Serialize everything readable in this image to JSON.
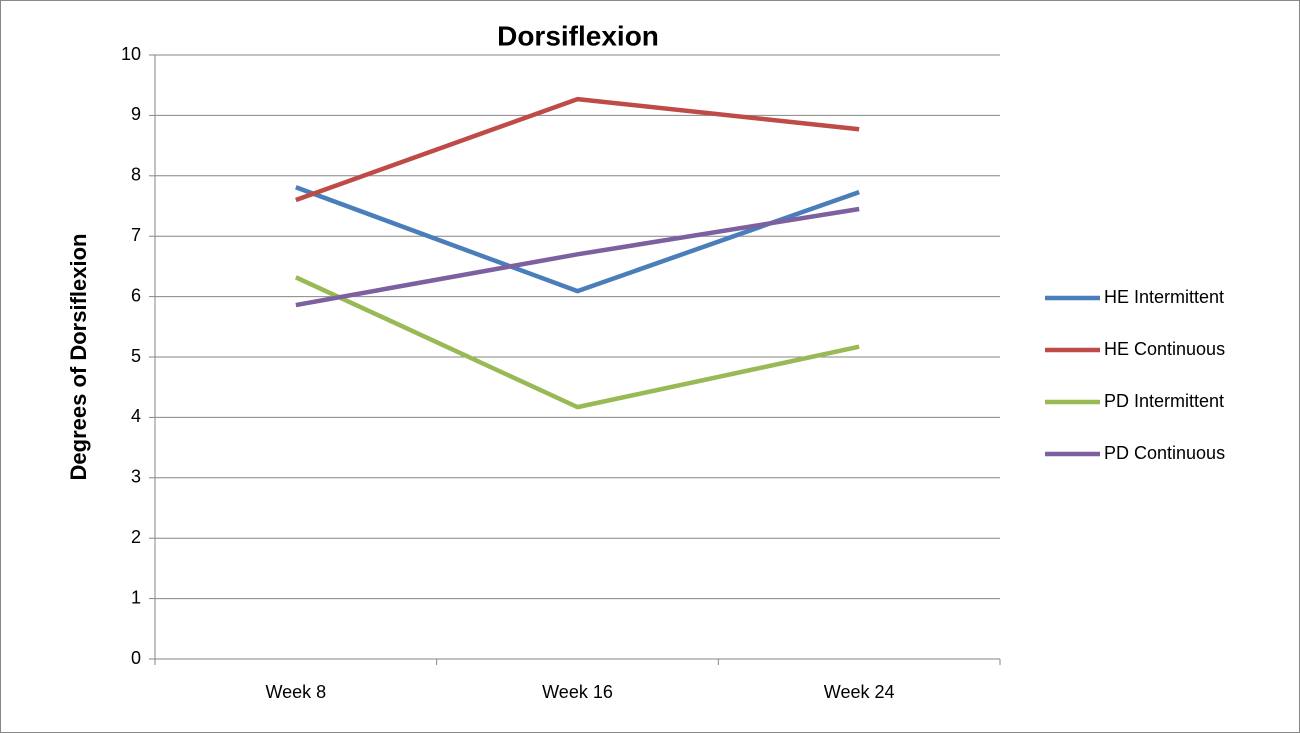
{
  "chart_data": {
    "type": "line",
    "title": "Dorsiflexion",
    "y_label": "Degrees of Dorsiflexion",
    "categories": [
      "Week 8",
      "Week 16",
      "Week 24"
    ],
    "series": [
      {
        "name": "HE Intermittent",
        "color": "#4a7ebb",
        "values": [
          7.81,
          6.09,
          7.73
        ]
      },
      {
        "name": "HE Continuous",
        "color": "#be4b48",
        "values": [
          7.6,
          9.27,
          8.77
        ]
      },
      {
        "name": "PD Intermittent",
        "color": "#98b954",
        "values": [
          6.32,
          4.17,
          5.17
        ]
      },
      {
        "name": "PD Continuous",
        "color": "#7d60a0",
        "values": [
          5.86,
          6.7,
          7.45
        ]
      }
    ],
    "ylim": [
      0,
      10
    ],
    "yticks": [
      0,
      1,
      2,
      3,
      4,
      5,
      6,
      7,
      8,
      9,
      10
    ],
    "grid": true,
    "legend": "right"
  }
}
